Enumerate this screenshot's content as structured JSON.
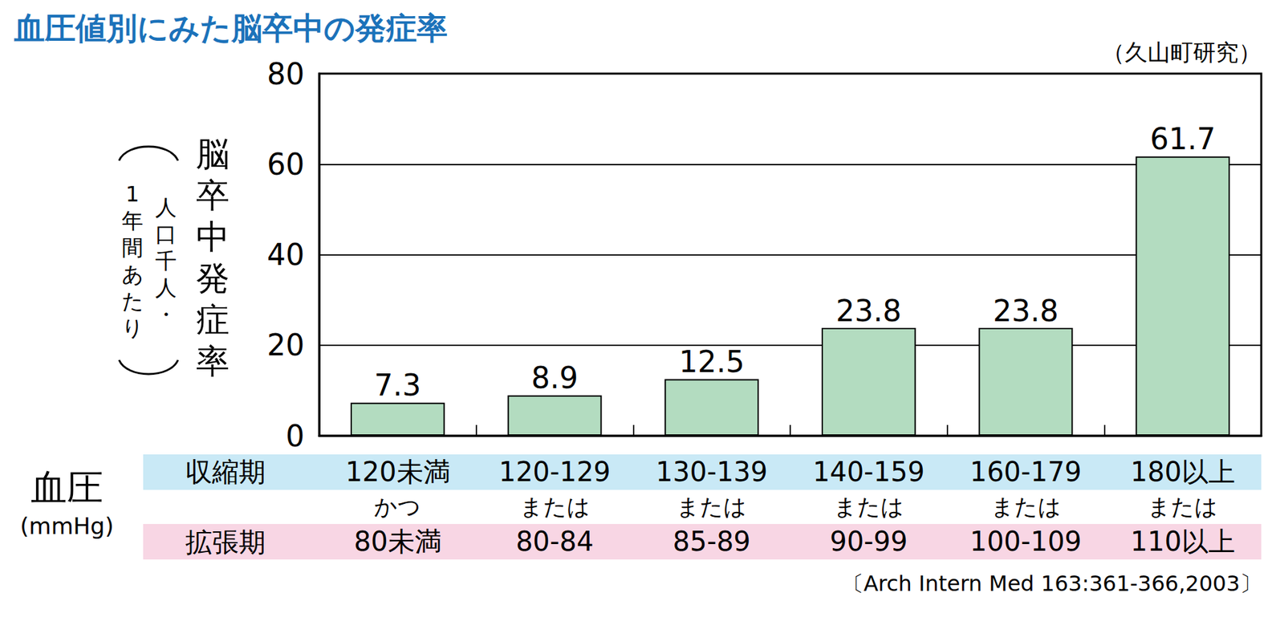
{
  "chart_data": {
    "type": "bar",
    "title": "血圧値別にみた脳卒中の発症率",
    "subtitle": "（久山町研究）",
    "ylabel": "脳卒中発症率",
    "ylabel_note": [
      "人口千人・",
      "1年間あたり"
    ],
    "xlabel": "血圧",
    "xlabel_unit": "(mmHg)",
    "row_labels": [
      "収縮期",
      "拡張期"
    ],
    "categories": [
      "120未満",
      "120-129",
      "130-139",
      "140-159",
      "160-179",
      "180以上"
    ],
    "category_connectors": [
      "かつ",
      "または",
      "または",
      "または",
      "または",
      "または"
    ],
    "category_diastolic": [
      "80未満",
      "80-84",
      "85-89",
      "90-99",
      "100-109",
      "110以上"
    ],
    "values": [
      7.3,
      8.9,
      12.5,
      23.8,
      23.8,
      61.7
    ],
    "color": "#b3dcc0",
    "ylim": [
      0,
      80
    ],
    "yticks": [
      0,
      20,
      40,
      60,
      80
    ],
    "grid": true,
    "data_labels": true,
    "source": "〔Arch Intern Med 163:361-366,2003〕"
  }
}
